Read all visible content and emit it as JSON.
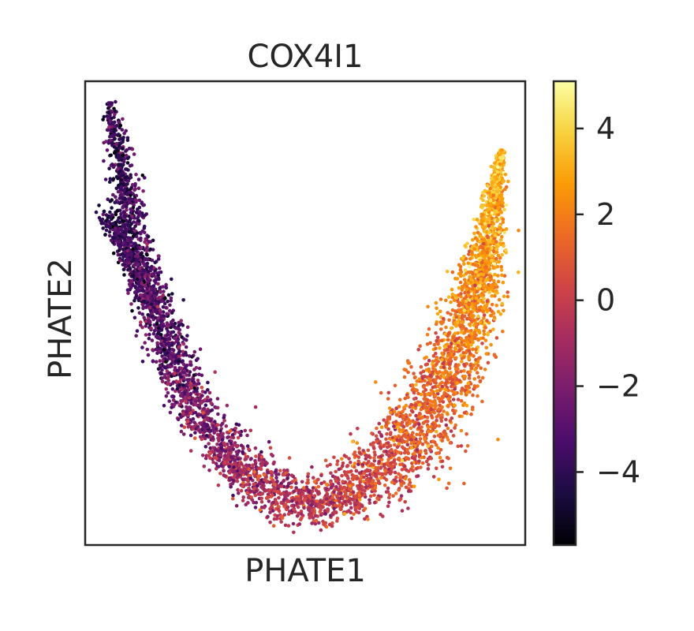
{
  "chart_data": {
    "type": "scatter",
    "title": "COX4I1",
    "xlabel": "PHATE1",
    "ylabel": "PHATE2",
    "x_ticks_shown": false,
    "y_ticks_shown": false,
    "grid": false,
    "legend": "none",
    "colorbar": {
      "colormap": "inferno",
      "range": [
        -5.7,
        5.1
      ],
      "ticks": [
        4,
        2,
        0,
        -2,
        -4
      ],
      "tick_labels": [
        "4",
        "2",
        "0",
        "−2",
        "−4"
      ]
    },
    "colormap_stops": [
      "#000004",
      "#1b0c41",
      "#4a0c6b",
      "#781c6d",
      "#a52c60",
      "#cf4446",
      "#ed6925",
      "#fb9b06",
      "#f7d13d",
      "#fcffa4"
    ],
    "point_summary": {
      "approx_point_count": 5000,
      "shape": "U-shaped manifold",
      "left_arm_expression": "low (about -5 to -2)",
      "trough_expression": "mid (about -1 to 1)",
      "right_arm_expression": "high (about 0 to 4)"
    }
  }
}
